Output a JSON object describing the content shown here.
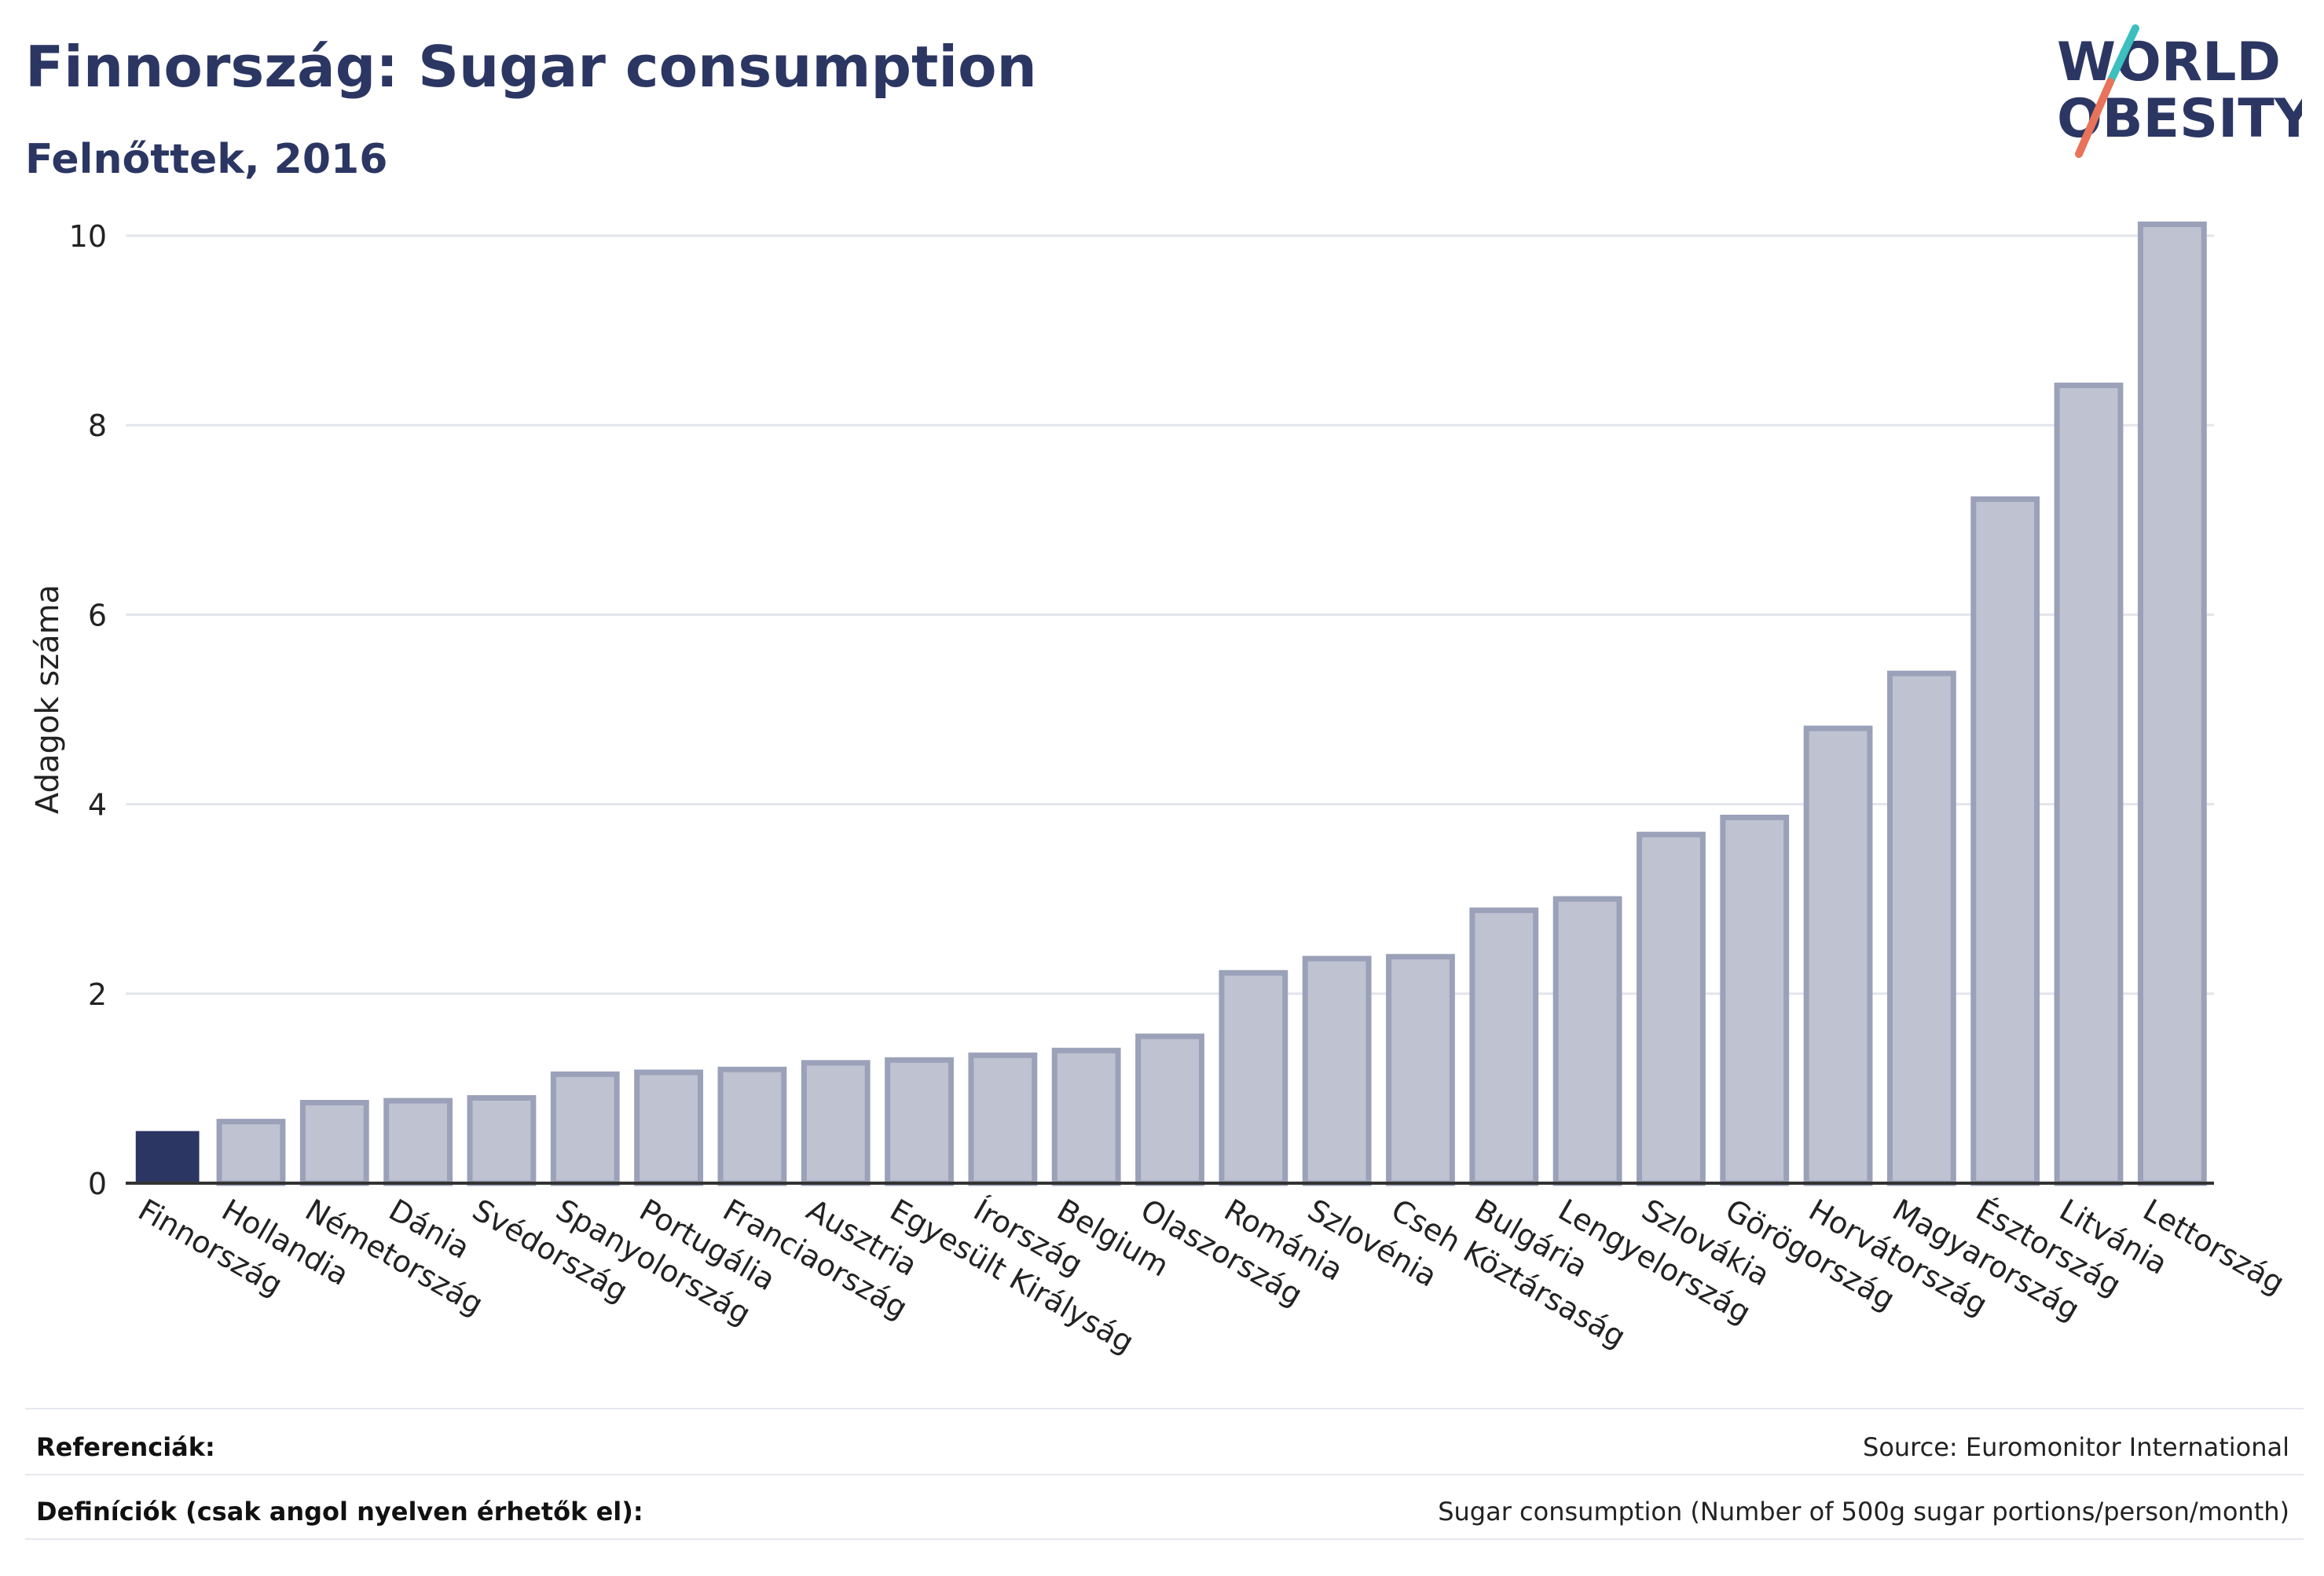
{
  "header": {
    "title": "Finnország: Sugar consumption",
    "subtitle": "Felnőttek, 2016"
  },
  "logo": {
    "line1": "WORLD",
    "line2": "OBESITY",
    "colors": {
      "text": "#2b3663",
      "slash_top": "#3bbfbf",
      "slash_bottom": "#e8735a"
    }
  },
  "chart_data": {
    "type": "bar",
    "ylabel": "Adagok száma",
    "ylim": [
      0,
      10
    ],
    "yticks": [
      0,
      2,
      4,
      6,
      8,
      10
    ],
    "grid": true,
    "highlight_category": "Finnország",
    "colors": {
      "highlight": "#2b3663",
      "bar": "#bfc3d1",
      "bar_border": "#9aa1b8",
      "grid": "#e3e5ec",
      "axis": "#333333"
    },
    "categories": [
      "Finnország",
      "Hollandia",
      "Németország",
      "Dánia",
      "Svédország",
      "Spanyolország",
      "Portugália",
      "Franciaország",
      "Ausztria",
      "Egyesült Királyság",
      "Írország",
      "Belgium",
      "Olaszország",
      "Románia",
      "Szlovénia",
      "Cseh Köztársaság",
      "Bulgária",
      "Lengyelország",
      "Szlovákia",
      "Görögország",
      "Horvátország",
      "Magyarország",
      "Észtország",
      "Litvánia",
      "Lettország"
    ],
    "values": [
      0.55,
      0.65,
      0.85,
      0.87,
      0.9,
      1.15,
      1.17,
      1.2,
      1.27,
      1.3,
      1.35,
      1.4,
      1.55,
      2.22,
      2.37,
      2.39,
      2.88,
      3.0,
      3.68,
      3.86,
      4.8,
      5.38,
      7.22,
      8.42,
      10.12
    ]
  },
  "footer": {
    "references_label": "Referenciák:",
    "references_value": "Source: Euromonitor International",
    "definitions_label": "Definíciók (csak angol nyelven érhetők el):",
    "definitions_value": "Sugar consumption (Number of 500g sugar portions/person/month)"
  }
}
